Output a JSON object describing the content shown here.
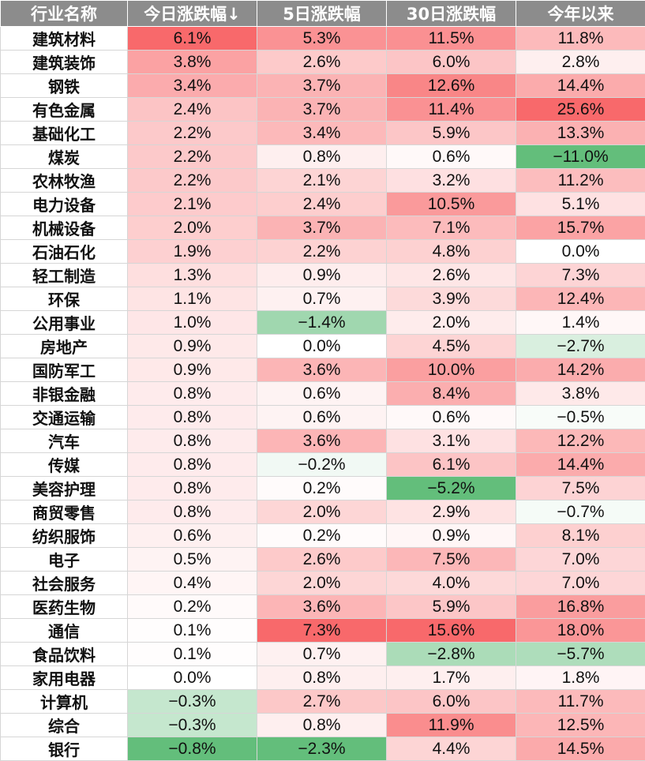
{
  "headers": [
    "行业名称",
    "今日涨跌幅↓",
    "5日涨跌幅",
    "30日涨跌幅",
    "今年以来"
  ],
  "rows": [
    [
      "建筑材料",
      "6.1%",
      "5.3%",
      "11.5%",
      "11.8%"
    ],
    [
      "建筑装饰",
      "3.8%",
      "2.6%",
      "6.0%",
      "2.8%"
    ],
    [
      "钢铁",
      "3.4%",
      "3.7%",
      "12.6%",
      "14.4%"
    ],
    [
      "有色金属",
      "2.4%",
      "3.7%",
      "11.4%",
      "25.6%"
    ],
    [
      "基础化工",
      "2.2%",
      "3.4%",
      "5.9%",
      "13.3%"
    ],
    [
      "煤炭",
      "2.2%",
      "0.8%",
      "0.6%",
      "−11.0%"
    ],
    [
      "农林牧渔",
      "2.2%",
      "2.1%",
      "3.2%",
      "11.2%"
    ],
    [
      "电力设备",
      "2.1%",
      "2.4%",
      "10.5%",
      "5.1%"
    ],
    [
      "机械设备",
      "2.0%",
      "3.7%",
      "7.1%",
      "15.7%"
    ],
    [
      "石油石化",
      "1.9%",
      "2.2%",
      "4.8%",
      "0.0%"
    ],
    [
      "轻工制造",
      "1.3%",
      "0.9%",
      "2.6%",
      "7.3%"
    ],
    [
      "环保",
      "1.1%",
      "0.7%",
      "3.9%",
      "12.4%"
    ],
    [
      "公用事业",
      "1.0%",
      "−1.4%",
      "2.0%",
      "1.4%"
    ],
    [
      "房地产",
      "0.9%",
      "0.0%",
      "4.5%",
      "−2.7%"
    ],
    [
      "国防军工",
      "0.9%",
      "3.6%",
      "10.0%",
      "14.2%"
    ],
    [
      "非银金融",
      "0.8%",
      "0.6%",
      "8.4%",
      "3.8%"
    ],
    [
      "交通运输",
      "0.8%",
      "0.6%",
      "0.6%",
      "−0.5%"
    ],
    [
      "汽车",
      "0.8%",
      "3.6%",
      "3.1%",
      "12.2%"
    ],
    [
      "传媒",
      "0.8%",
      "−0.2%",
      "6.1%",
      "14.4%"
    ],
    [
      "美容护理",
      "0.8%",
      "0.2%",
      "−5.2%",
      "7.5%"
    ],
    [
      "商贸零售",
      "0.8%",
      "2.0%",
      "2.9%",
      "−0.7%"
    ],
    [
      "纺织服饰",
      "0.6%",
      "0.2%",
      "0.9%",
      "8.1%"
    ],
    [
      "电子",
      "0.5%",
      "2.6%",
      "7.5%",
      "7.0%"
    ],
    [
      "社会服务",
      "0.4%",
      "2.0%",
      "4.0%",
      "7.0%"
    ],
    [
      "医药生物",
      "0.2%",
      "3.6%",
      "5.9%",
      "16.8%"
    ],
    [
      "通信",
      "0.1%",
      "7.3%",
      "15.6%",
      "18.0%"
    ],
    [
      "食品饮料",
      "0.1%",
      "0.7%",
      "−2.8%",
      "−5.7%"
    ],
    [
      "家用电器",
      "0.0%",
      "0.8%",
      "1.7%",
      "1.8%"
    ],
    [
      "计算机",
      "−0.3%",
      "2.7%",
      "6.0%",
      "11.7%"
    ],
    [
      "综合",
      "−0.3%",
      "0.8%",
      "11.9%",
      "12.5%"
    ],
    [
      "银行",
      "−0.8%",
      "−2.3%",
      "4.4%",
      "14.5%"
    ]
  ],
  "colors": {
    "header_bg": "#8c8c8c",
    "header_text": "#ffffff",
    "positive_max": "#f8696b",
    "negative_max": "#63be7b",
    "neutral": "#ffffff"
  }
}
